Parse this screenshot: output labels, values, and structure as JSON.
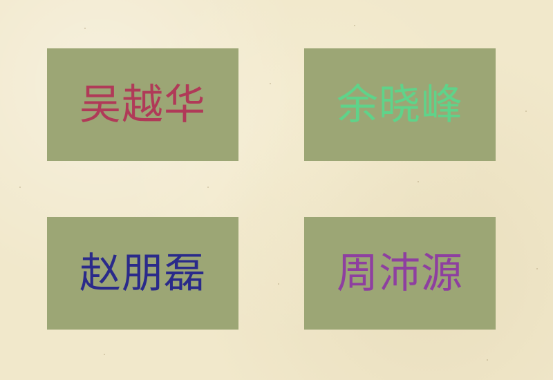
{
  "cards": [
    {
      "name": "吴越华",
      "color": "#b03a58"
    },
    {
      "name": "余晓峰",
      "color": "#5fd38a"
    },
    {
      "name": "赵朋磊",
      "color": "#2a2a8a"
    },
    {
      "name": "周沛源",
      "color": "#8e3fa0"
    }
  ]
}
